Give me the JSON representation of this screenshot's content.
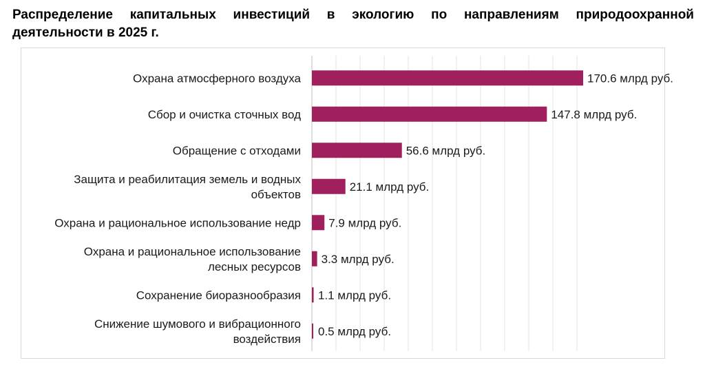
{
  "title": "Распределение капитальных инвестиций в экологию по направлениям природоохранной деятельности в 2025 г.",
  "chart_data": {
    "type": "bar",
    "orientation": "horizontal",
    "categories": [
      "Охрана атмосферного воздуха",
      "Сбор и очистка сточных вод",
      "Обращение с отходами",
      "Защита и реабилитация земель и водных объектов",
      "Охрана и рациональное использование недр",
      "Охрана и рациональное использование лесных ресурсов",
      "Сохранение биоразнообразия",
      "Снижение шумового и вибрационного воздействия"
    ],
    "category_lines": [
      [
        "Охрана атмосферного воздуха"
      ],
      [
        "Сбор и очистка сточных вод"
      ],
      [
        "Обращение с отходами"
      ],
      [
        "Защита и реабилитация земель и водных",
        "объектов"
      ],
      [
        "Охрана и рациональное использование недр"
      ],
      [
        "Охрана и рациональное использование",
        "лесных ресурсов"
      ],
      [
        "Сохранение биоразнообразия"
      ],
      [
        "Снижение шумового и вибрационного",
        "воздействия"
      ]
    ],
    "values": [
      170.6,
      147.8,
      56.6,
      21.1,
      7.9,
      3.3,
      1.1,
      0.5
    ],
    "value_labels": [
      "170.6 млрд руб.",
      "147.8 млрд руб.",
      "56.6 млрд руб.",
      "21.1 млрд руб.",
      "7.9 млрд руб.",
      "3.3 млрд руб.",
      "1.1 млрд руб.",
      "0.5 млрд руб."
    ],
    "xlim": [
      0,
      170.6
    ],
    "grid": true,
    "bar_color": "#a0205e"
  }
}
